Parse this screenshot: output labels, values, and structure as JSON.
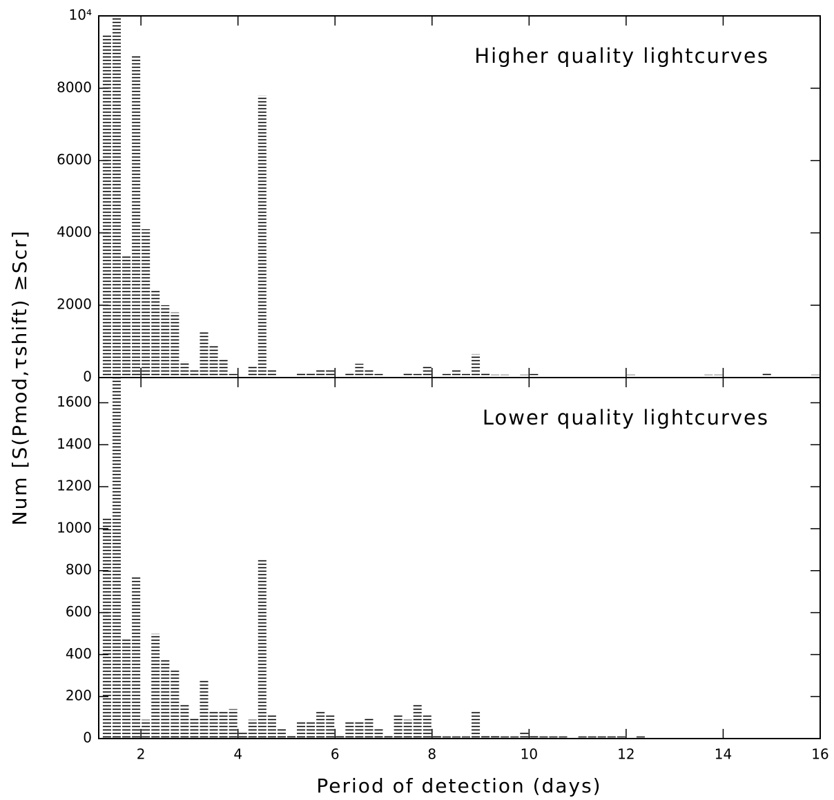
{
  "chart_data": [
    {
      "type": "histogram",
      "annotation": "Higher quality lightcurves",
      "ylabel": "Num [S(Pmod,τshift) ≥Scr]",
      "color": "#000000",
      "bins": [
        1.2,
        1.4,
        1.6,
        1.8,
        2.0,
        2.2,
        2.4,
        2.6,
        2.8,
        3.0,
        3.2,
        3.4,
        3.6,
        3.8,
        4.0,
        4.2,
        4.4,
        4.6,
        4.8,
        5.0,
        5.2,
        5.4,
        5.6,
        5.8,
        6.0,
        6.2,
        6.4,
        6.6,
        6.8,
        7.0,
        7.2,
        7.4,
        7.6,
        7.8,
        8.0,
        8.2,
        8.4,
        8.6,
        8.8,
        9.0,
        9.2,
        9.4,
        9.6,
        9.8,
        10.0,
        10.2,
        10.4,
        10.6,
        10.8,
        11.0,
        11.2,
        11.4,
        11.6,
        11.8,
        12.0,
        12.2,
        12.4,
        12.6,
        12.8,
        13.0,
        13.2,
        13.4,
        13.6,
        13.8,
        14.0,
        14.2,
        14.4,
        14.6,
        14.8,
        15.0,
        15.2,
        15.4,
        15.6,
        15.8,
        16.0
      ],
      "values": [
        9500,
        10000,
        3400,
        8900,
        4100,
        2400,
        2000,
        1800,
        450,
        200,
        1300,
        900,
        500,
        100,
        0,
        350,
        7800,
        200,
        50,
        0,
        150,
        150,
        250,
        200,
        0,
        150,
        380,
        200,
        100,
        50,
        50,
        150,
        100,
        330,
        0,
        100,
        200,
        100,
        650,
        150,
        80,
        80,
        60,
        80,
        100,
        40,
        0,
        0,
        60,
        40,
        0,
        40,
        0,
        40,
        80,
        40,
        0,
        40,
        40,
        40,
        40,
        0,
        80,
        80,
        0,
        0,
        0,
        40,
        120,
        40,
        0,
        0,
        0,
        80
      ],
      "xlim": [
        1.13,
        16
      ],
      "xticks": [
        2,
        4,
        6,
        8,
        10,
        12,
        14,
        16
      ],
      "ylim": [
        0,
        10000
      ],
      "yticks": [
        0,
        2000,
        4000,
        6000,
        8000,
        {
          "value": 10000,
          "label": "10⁴"
        }
      ]
    },
    {
      "type": "histogram",
      "annotation": "Lower quality lightcurves",
      "xlabel": "Period of detection (days)",
      "color": "#000000",
      "bins": [
        1.2,
        1.4,
        1.6,
        1.8,
        2.0,
        2.2,
        2.4,
        2.6,
        2.8,
        3.0,
        3.2,
        3.4,
        3.6,
        3.8,
        4.0,
        4.2,
        4.4,
        4.6,
        4.8,
        5.0,
        5.2,
        5.4,
        5.6,
        5.8,
        6.0,
        6.2,
        6.4,
        6.6,
        6.8,
        7.0,
        7.2,
        7.4,
        7.6,
        7.8,
        8.0,
        8.2,
        8.4,
        8.6,
        8.8,
        9.0,
        9.2,
        9.4,
        9.6,
        9.8,
        10.0,
        10.2,
        10.4,
        10.6,
        10.8,
        11.0,
        11.2,
        11.4,
        11.6,
        11.8,
        12.0,
        12.2,
        12.4,
        12.6,
        12.8,
        13.0,
        13.2,
        13.4,
        13.6,
        13.8,
        14.0,
        14.2,
        14.4,
        14.6,
        14.8,
        15.0,
        15.2,
        15.4,
        15.6,
        15.8,
        16.0
      ],
      "values": [
        1050,
        1720,
        480,
        770,
        90,
        500,
        380,
        330,
        160,
        100,
        280,
        130,
        130,
        140,
        30,
        90,
        850,
        120,
        50,
        20,
        80,
        80,
        130,
        120,
        20,
        80,
        80,
        100,
        50,
        20,
        120,
        90,
        160,
        120,
        20,
        10,
        10,
        10,
        130,
        20,
        20,
        10,
        10,
        30,
        20,
        10,
        10,
        10,
        0,
        10,
        10,
        10,
        10,
        10,
        0,
        10,
        0,
        0,
        0,
        0,
        0,
        0,
        0,
        0,
        0,
        0,
        0,
        0,
        0,
        0,
        0,
        0,
        0,
        0
      ],
      "xlim": [
        1.13,
        16
      ],
      "xticks": [
        2,
        4,
        6,
        8,
        10,
        12,
        14,
        16
      ],
      "ylim": [
        0,
        1720
      ],
      "yticks": [
        0,
        200,
        400,
        600,
        800,
        1000,
        1200,
        1400,
        1600
      ]
    }
  ]
}
